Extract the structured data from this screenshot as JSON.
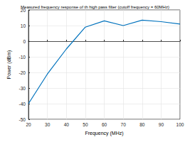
{
  "chart_data": {
    "type": "line",
    "title": "Measured frequency response of th high pass filter (cutoff frequency = 60MHz)",
    "x_label": "Frequency (MHz)",
    "y_label": "Power (dBm)",
    "x": [
      20,
      30,
      40,
      50,
      60,
      70,
      80,
      90,
      100
    ],
    "values": [
      -40,
      -21,
      -5,
      9,
      13,
      10,
      13.5,
      12.5,
      11
    ],
    "color": "#0072bd",
    "xlim": [
      20,
      100
    ],
    "xticks": [
      20,
      30,
      40,
      50,
      60,
      70,
      80,
      90,
      100
    ],
    "ylim": [
      -50,
      20
    ],
    "yticks": [
      -50,
      -40,
      -30,
      -20,
      -10,
      0,
      10,
      20
    ],
    "grid": true
  }
}
